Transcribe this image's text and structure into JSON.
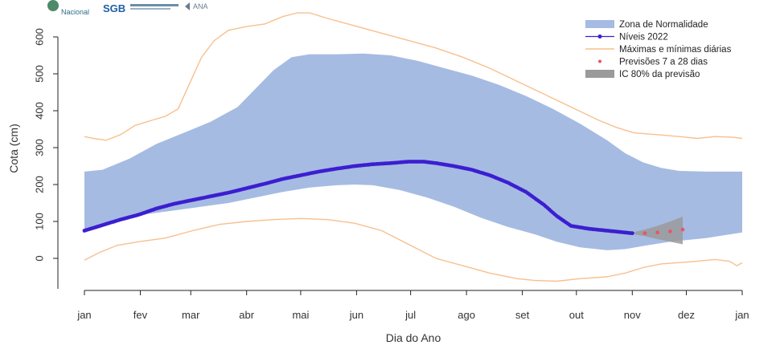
{
  "logos": [
    {
      "text": "Nacional",
      "color": "#2e6b8a"
    },
    {
      "text": "SGB",
      "color": "#1f5fa8"
    },
    {
      "text": "ANA",
      "color": "#6b7a8f"
    }
  ],
  "chart_data": {
    "type": "line",
    "xlabel": "Dia do Ano",
    "ylabel": "Cota (cm)",
    "xlim": [
      0,
      365
    ],
    "ylim": [
      -90,
      670
    ],
    "yticks": [
      0,
      100,
      200,
      300,
      400,
      500,
      600
    ],
    "month_ticks": [
      {
        "label": "jan",
        "day": 0
      },
      {
        "label": "fev",
        "day": 31
      },
      {
        "label": "mar",
        "day": 59
      },
      {
        "label": "abr",
        "day": 90
      },
      {
        "label": "mai",
        "day": 120
      },
      {
        "label": "jun",
        "day": 151
      },
      {
        "label": "jul",
        "day": 181
      },
      {
        "label": "ago",
        "day": 212
      },
      {
        "label": "set",
        "day": 243
      },
      {
        "label": "out",
        "day": 273
      },
      {
        "label": "nov",
        "day": 304
      },
      {
        "label": "dez",
        "day": 334
      },
      {
        "label": "jan",
        "day": 365
      }
    ],
    "legend_position": "top-right",
    "legend": [
      {
        "label": "Zona de Normalidade",
        "kind": "band",
        "color": "#a6bbe2"
      },
      {
        "label": "Níveis 2022",
        "kind": "line-point",
        "color": "#3b1fd0"
      },
      {
        "label": "Máximas e mínimas diárias",
        "kind": "line",
        "color": "#f7c08e"
      },
      {
        "label": "Previsões 7 a 28 dias",
        "kind": "point",
        "color": "#e8546a"
      },
      {
        "label": "IC 80% da previsão",
        "kind": "band",
        "color": "#9a9a9a"
      }
    ],
    "normal_zone": {
      "color": "#a6bbe2",
      "upper": [
        [
          0,
          235
        ],
        [
          10,
          240
        ],
        [
          25,
          270
        ],
        [
          40,
          310
        ],
        [
          55,
          340
        ],
        [
          70,
          370
        ],
        [
          85,
          410
        ],
        [
          95,
          460
        ],
        [
          105,
          510
        ],
        [
          115,
          545
        ],
        [
          125,
          553
        ],
        [
          140,
          553
        ],
        [
          155,
          555
        ],
        [
          170,
          550
        ],
        [
          185,
          535
        ],
        [
          200,
          515
        ],
        [
          215,
          495
        ],
        [
          230,
          470
        ],
        [
          245,
          440
        ],
        [
          260,
          405
        ],
        [
          275,
          365
        ],
        [
          290,
          320
        ],
        [
          300,
          285
        ],
        [
          310,
          260
        ],
        [
          320,
          245
        ],
        [
          330,
          237
        ],
        [
          345,
          235
        ],
        [
          365,
          235
        ]
      ],
      "lower": [
        [
          0,
          70
        ],
        [
          10,
          90
        ],
        [
          20,
          105
        ],
        [
          35,
          120
        ],
        [
          50,
          130
        ],
        [
          65,
          140
        ],
        [
          80,
          150
        ],
        [
          95,
          165
        ],
        [
          110,
          180
        ],
        [
          125,
          192
        ],
        [
          140,
          198
        ],
        [
          150,
          200
        ],
        [
          160,
          198
        ],
        [
          175,
          185
        ],
        [
          190,
          165
        ],
        [
          205,
          140
        ],
        [
          220,
          110
        ],
        [
          235,
          85
        ],
        [
          250,
          65
        ],
        [
          262,
          45
        ],
        [
          275,
          30
        ],
        [
          290,
          22
        ],
        [
          300,
          25
        ],
        [
          312,
          35
        ],
        [
          325,
          45
        ],
        [
          345,
          55
        ],
        [
          365,
          70
        ]
      ]
    },
    "max_daily": {
      "color": "#f7c08e",
      "points": [
        [
          0,
          330
        ],
        [
          5,
          325
        ],
        [
          12,
          320
        ],
        [
          20,
          335
        ],
        [
          28,
          360
        ],
        [
          38,
          375
        ],
        [
          45,
          385
        ],
        [
          52,
          405
        ],
        [
          58,
          470
        ],
        [
          65,
          545
        ],
        [
          72,
          590
        ],
        [
          80,
          618
        ],
        [
          90,
          628
        ],
        [
          100,
          635
        ],
        [
          110,
          655
        ],
        [
          118,
          665
        ],
        [
          125,
          665
        ],
        [
          135,
          650
        ],
        [
          150,
          630
        ],
        [
          165,
          610
        ],
        [
          180,
          590
        ],
        [
          195,
          570
        ],
        [
          210,
          545
        ],
        [
          225,
          515
        ],
        [
          240,
          480
        ],
        [
          255,
          445
        ],
        [
          270,
          410
        ],
        [
          285,
          375
        ],
        [
          295,
          355
        ],
        [
          305,
          340
        ],
        [
          318,
          335
        ],
        [
          330,
          330
        ],
        [
          340,
          325
        ],
        [
          350,
          330
        ],
        [
          360,
          328
        ],
        [
          365,
          325
        ]
      ]
    },
    "min_daily": {
      "color": "#f7c08e",
      "points": [
        [
          0,
          -5
        ],
        [
          8,
          15
        ],
        [
          18,
          35
        ],
        [
          30,
          45
        ],
        [
          45,
          55
        ],
        [
          60,
          75
        ],
        [
          75,
          92
        ],
        [
          90,
          100
        ],
        [
          105,
          105
        ],
        [
          120,
          108
        ],
        [
          135,
          105
        ],
        [
          150,
          95
        ],
        [
          165,
          75
        ],
        [
          175,
          50
        ],
        [
          185,
          25
        ],
        [
          195,
          0
        ],
        [
          210,
          -20
        ],
        [
          225,
          -40
        ],
        [
          240,
          -55
        ],
        [
          250,
          -60
        ],
        [
          262,
          -62
        ],
        [
          275,
          -55
        ],
        [
          290,
          -50
        ],
        [
          300,
          -40
        ],
        [
          310,
          -25
        ],
        [
          320,
          -15
        ],
        [
          335,
          -10
        ],
        [
          350,
          -3
        ],
        [
          358,
          -8
        ],
        [
          362,
          -20
        ],
        [
          365,
          -12
        ]
      ]
    },
    "series_2022": {
      "color": "#3b1fd0",
      "points": [
        [
          0,
          75
        ],
        [
          10,
          90
        ],
        [
          20,
          105
        ],
        [
          30,
          118
        ],
        [
          40,
          135
        ],
        [
          50,
          148
        ],
        [
          60,
          158
        ],
        [
          70,
          168
        ],
        [
          80,
          178
        ],
        [
          90,
          190
        ],
        [
          100,
          202
        ],
        [
          110,
          215
        ],
        [
          120,
          225
        ],
        [
          130,
          235
        ],
        [
          140,
          243
        ],
        [
          150,
          250
        ],
        [
          160,
          255
        ],
        [
          170,
          258
        ],
        [
          180,
          262
        ],
        [
          188,
          262
        ],
        [
          195,
          258
        ],
        [
          205,
          250
        ],
        [
          215,
          240
        ],
        [
          225,
          225
        ],
        [
          235,
          205
        ],
        [
          245,
          180
        ],
        [
          255,
          145
        ],
        [
          262,
          115
        ],
        [
          270,
          88
        ],
        [
          280,
          80
        ],
        [
          290,
          75
        ],
        [
          300,
          70
        ],
        [
          304,
          68
        ]
      ]
    },
    "forecast": {
      "color": "#e8546a",
      "points": [
        [
          311,
          68
        ],
        [
          318,
          70
        ],
        [
          325,
          73
        ],
        [
          332,
          78
        ]
      ]
    },
    "ci80": {
      "color": "#9a9a9a",
      "upper": [
        [
          304,
          70
        ],
        [
          311,
          78
        ],
        [
          318,
          88
        ],
        [
          325,
          100
        ],
        [
          332,
          113
        ]
      ],
      "lower": [
        [
          304,
          66
        ],
        [
          311,
          60
        ],
        [
          318,
          52
        ],
        [
          325,
          45
        ],
        [
          332,
          38
        ]
      ]
    }
  }
}
